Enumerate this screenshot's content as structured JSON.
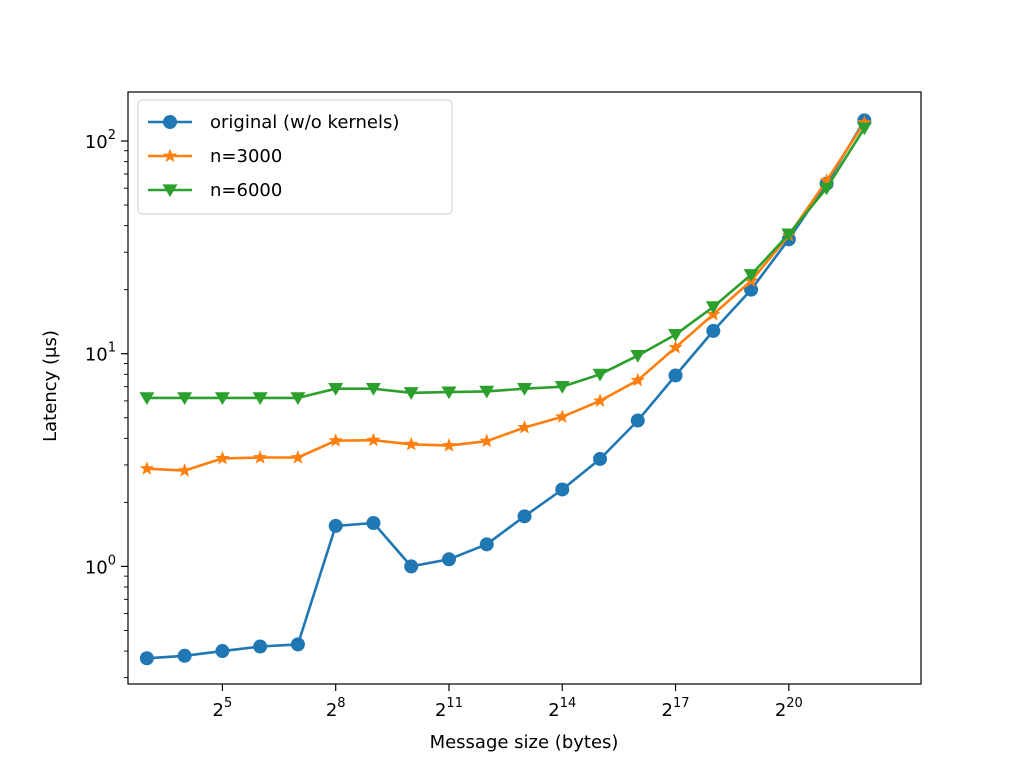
{
  "chart_data": {
    "type": "line",
    "title": "",
    "xlabel": "Message size (bytes)",
    "ylabel": "Latency (μs)",
    "x_scale": "log2",
    "y_scale": "log10",
    "xlim": [
      2.5,
      23.5
    ],
    "ylim": [
      0.28,
      170
    ],
    "x_ticks": [
      {
        "exp": 5,
        "base": "2",
        "sup": "5"
      },
      {
        "exp": 8,
        "base": "2",
        "sup": "8"
      },
      {
        "exp": 11,
        "base": "2",
        "sup": "11"
      },
      {
        "exp": 14,
        "base": "2",
        "sup": "14"
      },
      {
        "exp": 17,
        "base": "2",
        "sup": "17"
      },
      {
        "exp": 20,
        "base": "2",
        "sup": "20"
      }
    ],
    "y_ticks": [
      {
        "value": 1,
        "base": "10",
        "sup": "0"
      },
      {
        "value": 10,
        "base": "10",
        "sup": "1"
      },
      {
        "value": 100,
        "base": "10",
        "sup": "2"
      }
    ],
    "x": [
      "2^3",
      "2^4",
      "2^5",
      "2^6",
      "2^7",
      "2^8",
      "2^9",
      "2^10",
      "2^11",
      "2^12",
      "2^13",
      "2^14",
      "2^15",
      "2^16",
      "2^17",
      "2^18",
      "2^19",
      "2^20",
      "2^21",
      "2^22"
    ],
    "x_exponents": [
      3,
      4,
      5,
      6,
      7,
      8,
      9,
      10,
      11,
      12,
      13,
      14,
      15,
      16,
      17,
      18,
      19,
      20,
      21,
      22
    ],
    "grid": false,
    "legend_position": "top-left",
    "series": [
      {
        "name": "original (w/o kernels)",
        "color": "#1f77b4",
        "marker": "circle",
        "values": [
          0.37,
          0.38,
          0.4,
          0.42,
          0.43,
          1.55,
          1.6,
          1.0,
          1.08,
          1.27,
          1.72,
          2.3,
          3.2,
          4.85,
          7.9,
          12.8,
          20.0,
          34.5,
          63.0,
          125
        ]
      },
      {
        "name": "n=3000",
        "color": "#ff7f0e",
        "marker": "star",
        "values": [
          2.88,
          2.82,
          3.22,
          3.25,
          3.25,
          3.9,
          3.92,
          3.75,
          3.7,
          3.88,
          4.5,
          5.05,
          6.0,
          7.5,
          10.7,
          15.3,
          22.0,
          36.0,
          65.0,
          122
        ]
      },
      {
        "name": "n=6000",
        "color": "#2ca02c",
        "marker": "triangle-down",
        "values": [
          6.2,
          6.2,
          6.2,
          6.2,
          6.2,
          6.85,
          6.85,
          6.55,
          6.6,
          6.65,
          6.85,
          7.0,
          8.0,
          9.8,
          12.3,
          16.6,
          23.5,
          36.5,
          60.0,
          115
        ]
      }
    ]
  }
}
